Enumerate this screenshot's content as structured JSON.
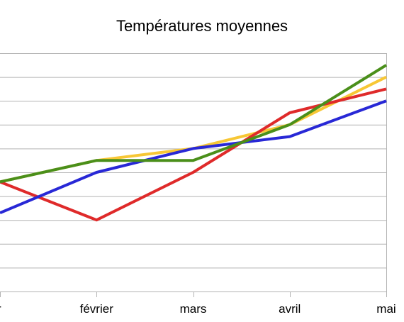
{
  "chart_data": {
    "type": "line",
    "title": "Températures moyennes",
    "xlabel": "",
    "ylabel": "",
    "categories": [
      "janvier",
      "février",
      "mars",
      "avril",
      "mai"
    ],
    "x_tick_labels_visible": [
      "r",
      "février",
      "mars",
      "avril",
      "mai"
    ],
    "ylim": [
      0,
      10
    ],
    "y_gridlines": [
      0,
      1,
      2,
      3,
      4,
      5,
      6,
      7,
      8,
      9,
      10
    ],
    "grid": true,
    "legend": "none",
    "series": [
      {
        "color": "#f7c735",
        "values": [
          4.6,
          5.5,
          6.0,
          7.0,
          9.0
        ]
      },
      {
        "color": "#df2a2a",
        "values": [
          4.6,
          3.0,
          5.0,
          7.5,
          8.5
        ]
      },
      {
        "color": "#2828d6",
        "values": [
          3.3,
          5.0,
          6.0,
          6.5,
          8.0
        ]
      },
      {
        "color": "#4a8f1a",
        "values": [
          4.6,
          5.5,
          5.5,
          7.0,
          9.5
        ]
      }
    ]
  }
}
